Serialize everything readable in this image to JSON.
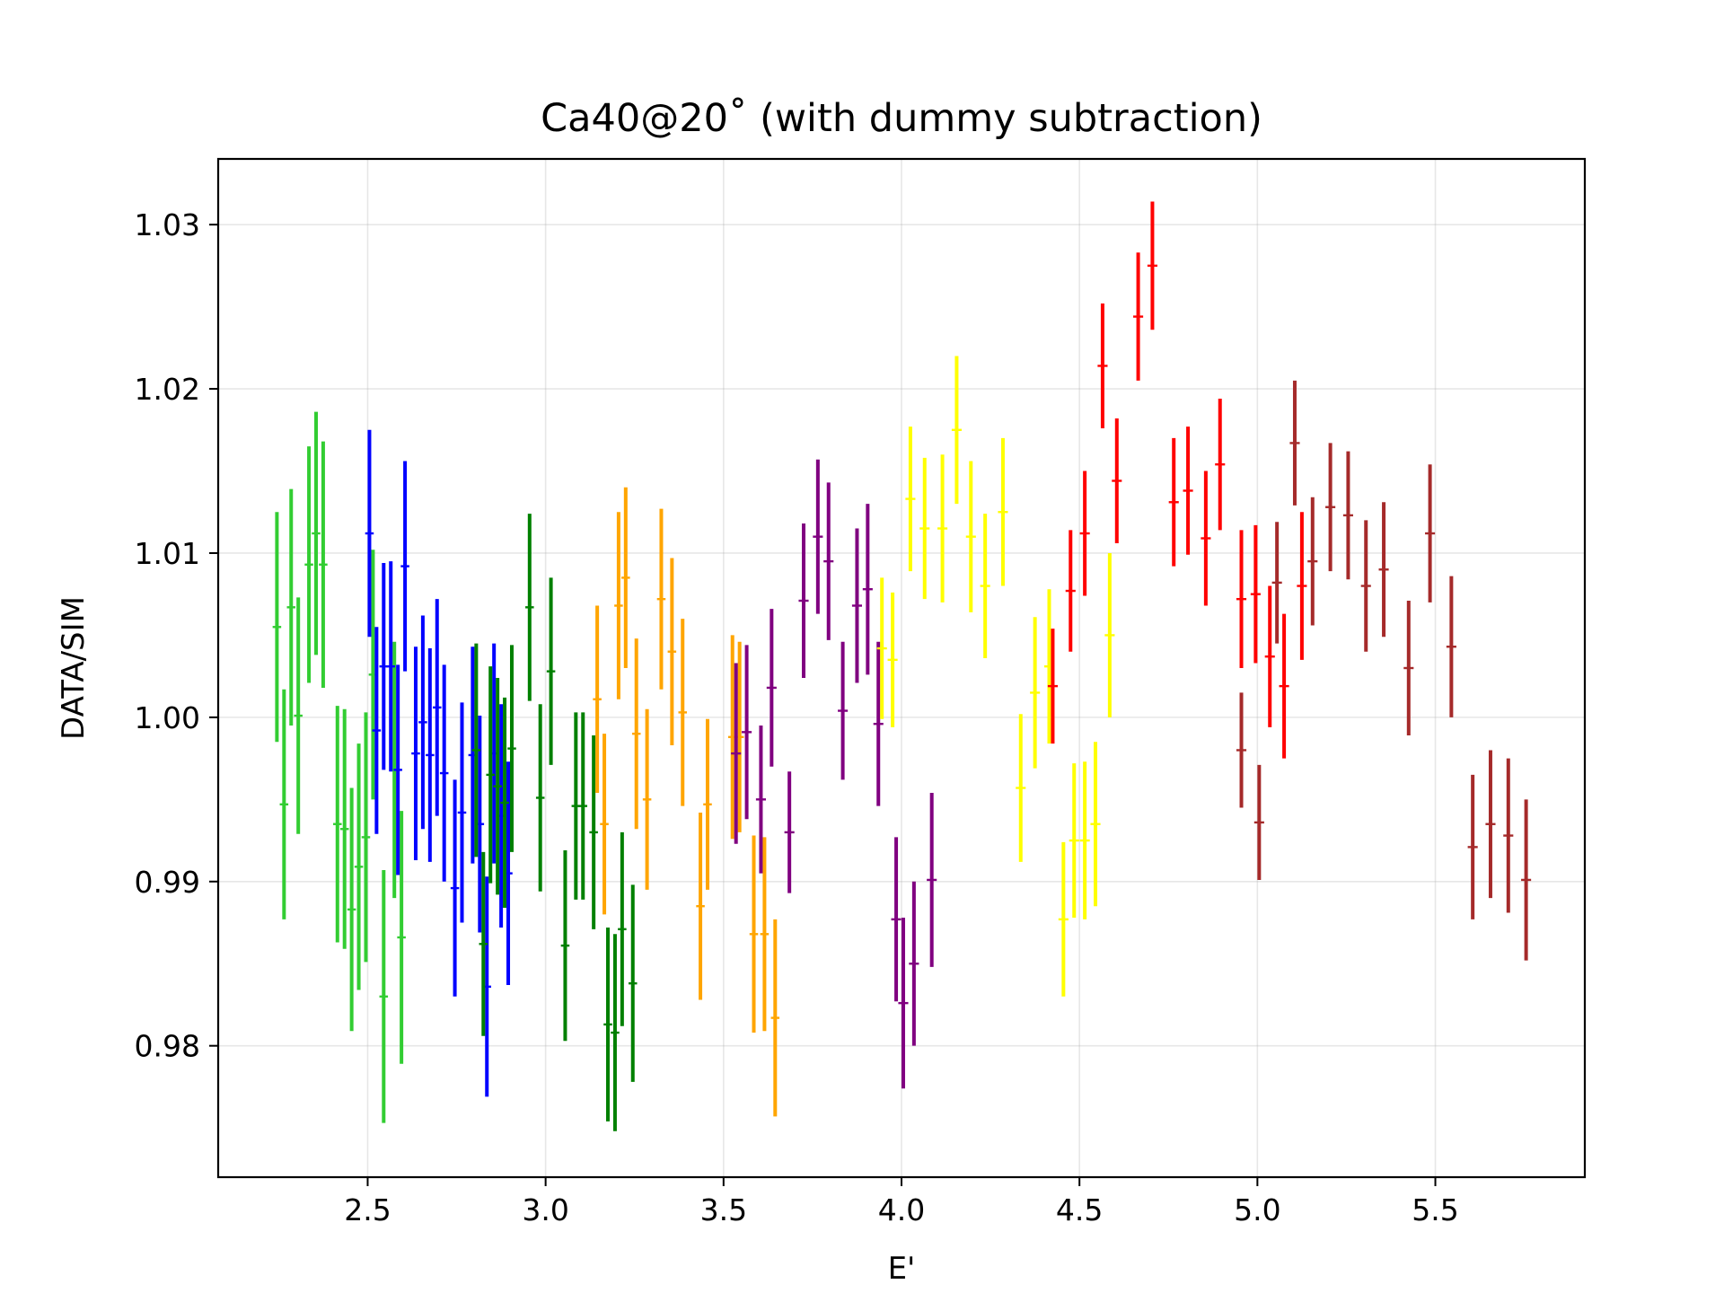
{
  "chart_data": {
    "type": "scatter",
    "title": "Ca40@20˚ (with dummy subtraction)",
    "xlabel": "E'",
    "ylabel": "DATA/SIM",
    "xlim": [
      2.08,
      5.92
    ],
    "ylim": [
      0.972,
      1.034
    ],
    "xticks": [
      2.5,
      3.0,
      3.5,
      4.0,
      4.5,
      5.0,
      5.5
    ],
    "xtick_labels": [
      "2.5",
      "3.0",
      "3.5",
      "4.0",
      "4.5",
      "5.0",
      "5.5"
    ],
    "yticks": [
      0.98,
      0.99,
      1.0,
      1.01,
      1.02,
      1.03
    ],
    "ytick_labels": [
      "0.98",
      "0.99",
      "1.00",
      "1.01",
      "1.02",
      "1.03"
    ],
    "grid": true,
    "marker": "errorbar-plus",
    "series": [
      {
        "color": "#32cd32",
        "xerr": 0.012,
        "points": [
          [
            2.245,
            1.0055,
            0.007
          ],
          [
            2.265,
            0.9947,
            0.007
          ],
          [
            2.285,
            1.0067,
            0.0072
          ],
          [
            2.305,
            1.0001,
            0.0072
          ],
          [
            2.335,
            1.0093,
            0.0072
          ],
          [
            2.355,
            1.0112,
            0.0074
          ],
          [
            2.375,
            1.0093,
            0.0075
          ],
          [
            2.415,
            0.9935,
            0.0072
          ],
          [
            2.435,
            0.9932,
            0.0073
          ],
          [
            2.455,
            0.9883,
            0.0074
          ],
          [
            2.475,
            0.9909,
            0.0075
          ],
          [
            2.495,
            0.9927,
            0.0076
          ],
          [
            2.515,
            1.0026,
            0.0076
          ],
          [
            2.545,
            0.983,
            0.0077
          ],
          [
            2.575,
            0.9968,
            0.0078
          ],
          [
            2.595,
            0.9866,
            0.0077
          ]
        ]
      },
      {
        "color": "#0000ff",
        "xerr": 0.012,
        "points": [
          [
            2.505,
            1.0112,
            0.0063
          ],
          [
            2.525,
            0.9992,
            0.0063
          ],
          [
            2.545,
            1.0031,
            0.0063
          ],
          [
            2.565,
            1.0031,
            0.0064
          ],
          [
            2.585,
            0.9968,
            0.0064
          ],
          [
            2.605,
            1.0092,
            0.0064
          ],
          [
            2.635,
            0.9978,
            0.0065
          ],
          [
            2.655,
            0.9997,
            0.0065
          ],
          [
            2.675,
            0.9977,
            0.0065
          ],
          [
            2.695,
            1.0006,
            0.0066
          ],
          [
            2.715,
            0.9966,
            0.0066
          ],
          [
            2.745,
            0.9896,
            0.0066
          ],
          [
            2.765,
            0.9942,
            0.0067
          ],
          [
            2.795,
            0.9977,
            0.0066
          ],
          [
            2.815,
            0.9935,
            0.0066
          ],
          [
            2.835,
            0.9836,
            0.0067
          ],
          [
            2.855,
            0.9978,
            0.0067
          ],
          [
            2.875,
            0.994,
            0.0068
          ],
          [
            2.895,
            0.9905,
            0.0068
          ]
        ]
      },
      {
        "color": "#008000",
        "xerr": 0.012,
        "points": [
          [
            2.805,
            0.998,
            0.0065
          ],
          [
            2.825,
            0.9862,
            0.0056
          ],
          [
            2.845,
            0.9965,
            0.0066
          ],
          [
            2.865,
            0.9958,
            0.0066
          ],
          [
            2.885,
            0.9948,
            0.0064
          ],
          [
            2.905,
            0.9981,
            0.0063
          ],
          [
            2.955,
            1.0067,
            0.0057
          ],
          [
            2.985,
            0.9951,
            0.0057
          ],
          [
            3.015,
            1.0028,
            0.0057
          ],
          [
            3.055,
            0.9861,
            0.0058
          ],
          [
            3.085,
            0.9946,
            0.0057
          ],
          [
            3.105,
            0.9946,
            0.0057
          ],
          [
            3.135,
            0.993,
            0.0059
          ],
          [
            3.175,
            0.9813,
            0.0059
          ],
          [
            3.195,
            0.9808,
            0.006
          ],
          [
            3.215,
            0.9871,
            0.0059
          ],
          [
            3.245,
            0.9838,
            0.006
          ]
        ]
      },
      {
        "color": "#ffa500",
        "xerr": 0.012,
        "points": [
          [
            3.145,
            1.0011,
            0.0057
          ],
          [
            3.165,
            0.9935,
            0.0055
          ],
          [
            3.205,
            1.0068,
            0.0057
          ],
          [
            3.225,
            1.0085,
            0.0055
          ],
          [
            3.255,
            0.999,
            0.0058
          ],
          [
            3.285,
            0.995,
            0.0055
          ],
          [
            3.325,
            1.0072,
            0.0055
          ],
          [
            3.355,
            1.004,
            0.0057
          ],
          [
            3.385,
            1.0003,
            0.0057
          ],
          [
            3.435,
            0.9885,
            0.0057
          ],
          [
            3.455,
            0.9947,
            0.0052
          ],
          [
            3.525,
            0.9988,
            0.0062
          ],
          [
            3.545,
            0.9988,
            0.0058
          ],
          [
            3.585,
            0.9868,
            0.006
          ],
          [
            3.615,
            0.9868,
            0.0059
          ],
          [
            3.645,
            0.9817,
            0.006
          ]
        ]
      },
      {
        "color": "#800080",
        "xerr": 0.014,
        "points": [
          [
            3.535,
            0.9978,
            0.0055
          ],
          [
            3.565,
            0.9991,
            0.0053
          ],
          [
            3.605,
            0.995,
            0.0045
          ],
          [
            3.635,
            1.0018,
            0.0048
          ],
          [
            3.685,
            0.993,
            0.0037
          ],
          [
            3.725,
            1.0071,
            0.0047
          ],
          [
            3.765,
            1.011,
            0.0047
          ],
          [
            3.795,
            1.0095,
            0.0048
          ],
          [
            3.835,
            1.0004,
            0.0042
          ],
          [
            3.875,
            1.0068,
            0.0047
          ],
          [
            3.905,
            1.0078,
            0.0052
          ],
          [
            3.935,
            0.9996,
            0.005
          ],
          [
            3.985,
            0.9877,
            0.005
          ],
          [
            4.005,
            0.9826,
            0.0052
          ],
          [
            4.035,
            0.985,
            0.005
          ],
          [
            4.085,
            0.9901,
            0.0053
          ]
        ]
      },
      {
        "color": "#ffff00",
        "xerr": 0.014,
        "points": [
          [
            3.945,
            1.0042,
            0.0043
          ],
          [
            3.975,
            1.0035,
            0.0041
          ],
          [
            4.025,
            1.0133,
            0.0044
          ],
          [
            4.065,
            1.0115,
            0.0043
          ],
          [
            4.115,
            1.0115,
            0.0045
          ],
          [
            4.155,
            1.0175,
            0.0045
          ],
          [
            4.195,
            1.011,
            0.0046
          ],
          [
            4.235,
            1.008,
            0.0044
          ],
          [
            4.285,
            1.0125,
            0.0045
          ],
          [
            4.335,
            0.9957,
            0.0045
          ],
          [
            4.375,
            1.0015,
            0.0046
          ],
          [
            4.415,
            1.0031,
            0.0047
          ],
          [
            4.455,
            0.9877,
            0.0047
          ],
          [
            4.485,
            0.9925,
            0.0047
          ],
          [
            4.515,
            0.9925,
            0.0048
          ],
          [
            4.545,
            0.9935,
            0.005
          ],
          [
            4.585,
            1.005,
            0.005
          ]
        ]
      },
      {
        "color": "#ff0000",
        "xerr": 0.014,
        "points": [
          [
            4.425,
            1.0019,
            0.0035
          ],
          [
            4.475,
            1.0077,
            0.0037
          ],
          [
            4.515,
            1.0112,
            0.0038
          ],
          [
            4.565,
            1.0214,
            0.0038
          ],
          [
            4.605,
            1.0144,
            0.0038
          ],
          [
            4.665,
            1.0244,
            0.0039
          ],
          [
            4.705,
            1.0275,
            0.0039
          ],
          [
            4.765,
            1.0131,
            0.0039
          ],
          [
            4.805,
            1.0138,
            0.0039
          ],
          [
            4.855,
            1.0109,
            0.0041
          ],
          [
            4.895,
            1.0154,
            0.004
          ],
          [
            4.955,
            1.0072,
            0.0042
          ],
          [
            4.995,
            1.0075,
            0.0042
          ],
          [
            5.035,
            1.0037,
            0.0043
          ],
          [
            5.075,
            1.0019,
            0.0044
          ],
          [
            5.125,
            1.008,
            0.0045
          ]
        ]
      },
      {
        "color": "#a52a2a",
        "xerr": 0.014,
        "points": [
          [
            4.955,
            0.998,
            0.0035
          ],
          [
            5.005,
            0.9936,
            0.0035
          ],
          [
            5.055,
            1.0082,
            0.0037
          ],
          [
            5.105,
            1.0167,
            0.0038
          ],
          [
            5.155,
            1.0095,
            0.0039
          ],
          [
            5.205,
            1.0128,
            0.0039
          ],
          [
            5.255,
            1.0123,
            0.0039
          ],
          [
            5.305,
            1.008,
            0.004
          ],
          [
            5.355,
            1.009,
            0.0041
          ],
          [
            5.425,
            1.003,
            0.0041
          ],
          [
            5.485,
            1.0112,
            0.0042
          ],
          [
            5.545,
            1.0043,
            0.0043
          ],
          [
            5.605,
            0.9921,
            0.0044
          ],
          [
            5.655,
            0.9935,
            0.0045
          ],
          [
            5.705,
            0.9928,
            0.0047
          ],
          [
            5.755,
            0.9901,
            0.0049
          ]
        ]
      }
    ]
  }
}
